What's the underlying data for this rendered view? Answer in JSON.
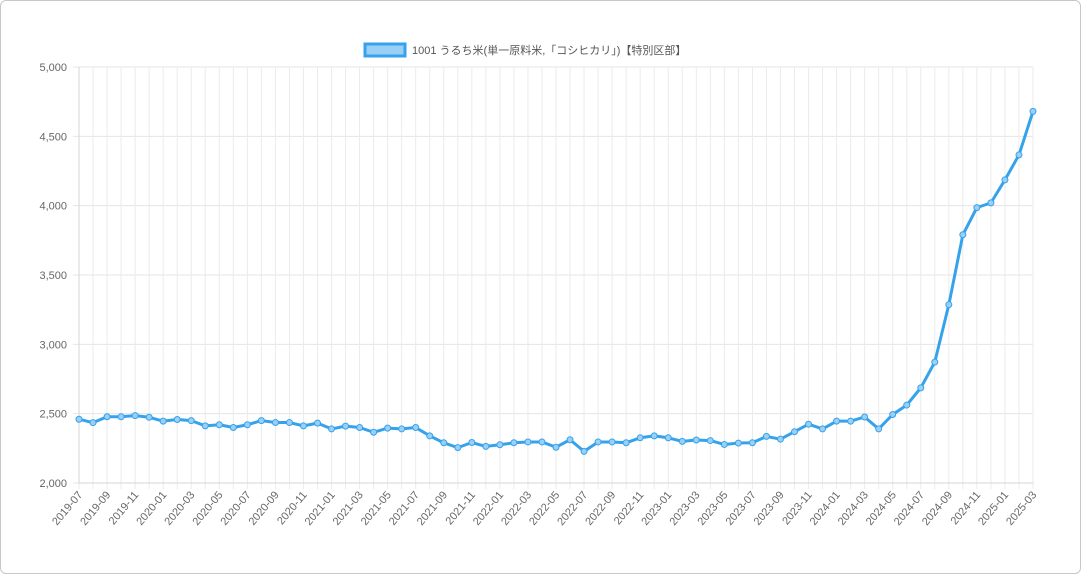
{
  "chart_data": {
    "type": "line",
    "legend_position": "top-center",
    "grid": true,
    "ylim": [
      2000,
      5000
    ],
    "yticks": [
      2000,
      2500,
      3000,
      3500,
      4000,
      4500,
      5000
    ],
    "y_tick_labels": [
      "2,000",
      "2,500",
      "3,000",
      "3,500",
      "4,000",
      "4,500",
      "5,000"
    ],
    "x": [
      "2019-07",
      "2019-08",
      "2019-09",
      "2019-10",
      "2019-11",
      "2019-12",
      "2020-01",
      "2020-02",
      "2020-03",
      "2020-04",
      "2020-05",
      "2020-06",
      "2020-07",
      "2020-08",
      "2020-09",
      "2020-10",
      "2020-11",
      "2020-12",
      "2021-01",
      "2021-02",
      "2021-03",
      "2021-04",
      "2021-05",
      "2021-06",
      "2021-07",
      "2021-08",
      "2021-09",
      "2021-10",
      "2021-11",
      "2021-12",
      "2022-01",
      "2022-02",
      "2022-03",
      "2022-04",
      "2022-05",
      "2022-06",
      "2022-07",
      "2022-08",
      "2022-09",
      "2022-10",
      "2022-11",
      "2022-12",
      "2023-01",
      "2023-02",
      "2023-03",
      "2023-04",
      "2023-05",
      "2023-06",
      "2023-07",
      "2023-08",
      "2023-09",
      "2023-10",
      "2023-11",
      "2023-12",
      "2024-01",
      "2024-02",
      "2024-03",
      "2024-04",
      "2024-05",
      "2024-06",
      "2024-07",
      "2024-08",
      "2024-09",
      "2024-10",
      "2024-11",
      "2024-12",
      "2025-01",
      "2025-02",
      "2025-03"
    ],
    "x_tick_labels": [
      "2019-07",
      "2019-09",
      "2019-11",
      "2020-01",
      "2020-03",
      "2020-05",
      "2020-07",
      "2020-09",
      "2020-11",
      "2021-01",
      "2021-03",
      "2021-05",
      "2021-07",
      "2021-09",
      "2021-11",
      "2022-01",
      "2022-03",
      "2022-05",
      "2022-07",
      "2022-09",
      "2022-11",
      "2023-01",
      "2023-03",
      "2023-05",
      "2023-07",
      "2023-09",
      "2023-11",
      "2024-01",
      "2024-03",
      "2024-05",
      "2024-07",
      "2024-09",
      "2024-11",
      "2025-01",
      "2025-03"
    ],
    "series": [
      {
        "name": "1001 うるち米(単一原料米,「コシヒカリ」)【特別区部】",
        "color": "#36a2eb",
        "fill_color": "#9ad0f5",
        "values": [
          2460,
          2435,
          2478,
          2478,
          2486,
          2474,
          2446,
          2458,
          2450,
          2412,
          2420,
          2400,
          2420,
          2450,
          2436,
          2436,
          2412,
          2432,
          2390,
          2410,
          2400,
          2366,
          2396,
          2390,
          2400,
          2340,
          2290,
          2255,
          2292,
          2264,
          2276,
          2290,
          2296,
          2296,
          2258,
          2312,
          2228,
          2296,
          2296,
          2290,
          2326,
          2340,
          2326,
          2300,
          2310,
          2306,
          2278,
          2288,
          2290,
          2336,
          2316,
          2370,
          2424,
          2390,
          2446,
          2446,
          2476,
          2390,
          2494,
          2562,
          2686,
          2872,
          3286,
          3790,
          3986,
          4020,
          4186,
          4366,
          4680
        ]
      }
    ]
  }
}
